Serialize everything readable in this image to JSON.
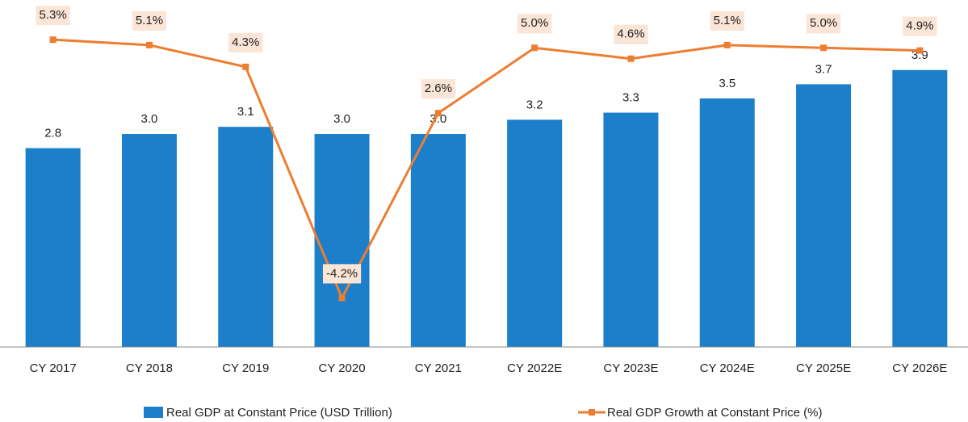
{
  "chart_data": {
    "type": "bar_line",
    "categories": [
      "CY 2017",
      "CY 2018",
      "CY 2019",
      "CY 2020",
      "CY 2021",
      "CY 2022E",
      "CY 2023E",
      "CY 2024E",
      "CY 2025E",
      "CY 2026E"
    ],
    "series": [
      {
        "name": "Real GDP at Constant Price (USD Trillion)",
        "type": "bar",
        "color": "#1b7fc9",
        "values": [
          2.8,
          3.0,
          3.1,
          3.0,
          3.0,
          3.2,
          3.3,
          3.5,
          3.7,
          3.9
        ],
        "value_labels": [
          "2.8",
          "3.0",
          "3.1",
          "3.0",
          "3.0",
          "3.2",
          "3.3",
          "3.5",
          "3.7",
          "3.9"
        ]
      },
      {
        "name": "Real GDP Growth at Constant Price (%)",
        "type": "line",
        "axis": "y2",
        "color": "#ed7d31",
        "values": [
          5.3,
          5.1,
          4.3,
          -4.2,
          2.6,
          5.0,
          4.6,
          5.1,
          5.0,
          4.9
        ],
        "value_labels": [
          "5.3%",
          "5.1%",
          "4.3%",
          "-4.2%",
          "2.6%",
          "5.0%",
          "4.6%",
          "5.1%",
          "5.0%",
          "4.9%"
        ]
      }
    ],
    "ylim": [
      0,
      4.5
    ],
    "y2lim": [
      -6,
      5.75
    ],
    "legend": "bottom"
  }
}
